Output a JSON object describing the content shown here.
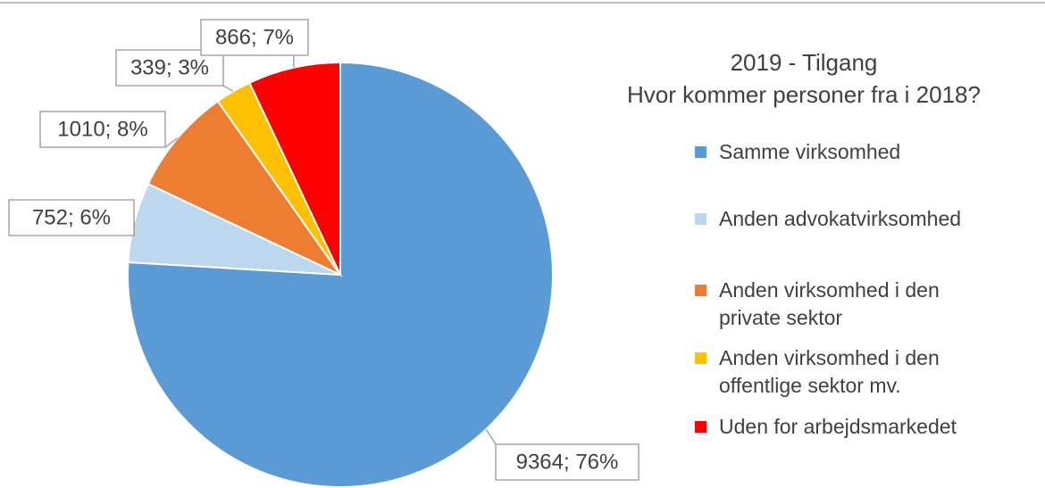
{
  "chart_data": {
    "type": "pie",
    "title": "2019 - Tilgang",
    "subtitle": "Hvor kommer personer fra i 2018?",
    "categories": [
      "Samme virksomhed",
      "Anden advokatvirksomhed",
      "Anden virksomhed i den private sektor",
      "Anden virksomhed i den offentlige sektor mv.",
      "Uden for arbejdsmarkedet"
    ],
    "values": [
      9364,
      752,
      1010,
      339,
      866
    ],
    "value_labels": [
      "9364; 76%",
      "752; 6%",
      "1010; 8%",
      "339; 3%",
      "866; 7%"
    ],
    "colors": [
      "#5b9bd5",
      "#bdd7ee",
      "#ed7d31",
      "#ffc000",
      "#ff0000"
    ],
    "legend": "right"
  }
}
